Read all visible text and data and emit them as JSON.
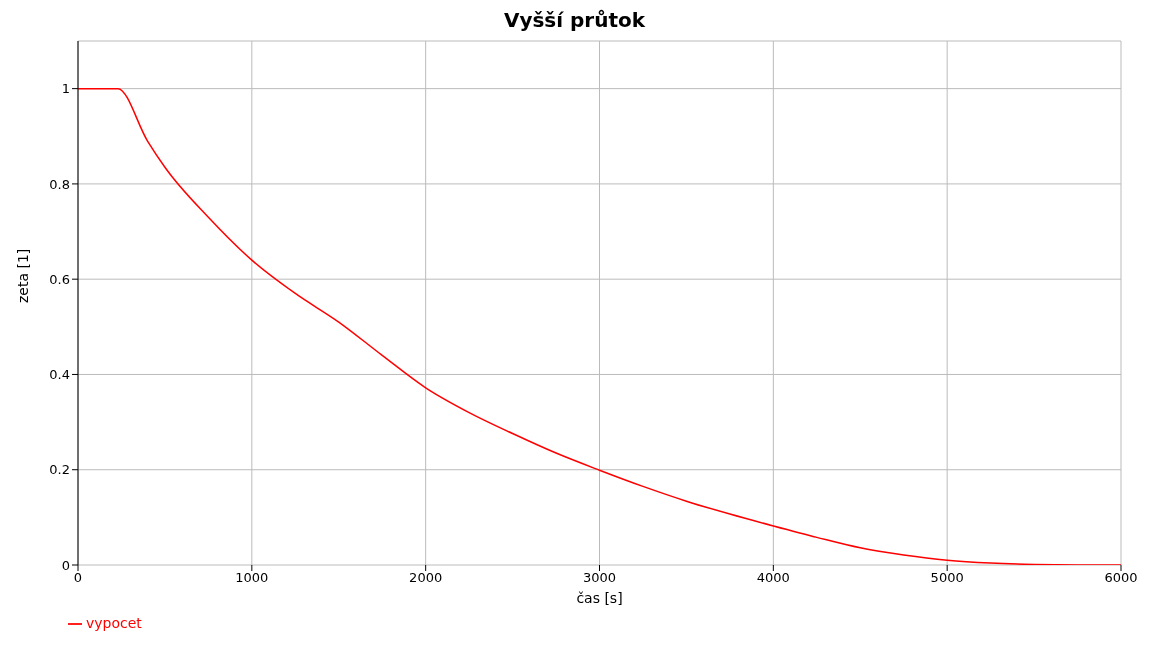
{
  "chart_data": {
    "type": "line",
    "title": "Vyšší průtok",
    "xlabel": "čas [s]",
    "ylabel": "zeta [1]",
    "series": [
      {
        "name": "vypocet",
        "color": "#ff0000",
        "x": [
          0,
          125,
          230,
          400,
          500,
          750,
          1000,
          1250,
          1500,
          1750,
          2000,
          2250,
          2500,
          2750,
          3000,
          3250,
          3500,
          3750,
          4000,
          4250,
          4500,
          4750,
          5000,
          5250,
          5500,
          5750,
          6000
        ],
        "values": [
          1,
          1,
          1,
          0.89,
          0.835,
          0.73,
          0.64,
          0.57,
          0.51,
          0.44,
          0.372,
          0.32,
          0.276,
          0.235,
          0.199,
          0.165,
          0.134,
          0.107,
          0.082,
          0.058,
          0.036,
          0.021,
          0.01,
          0.004,
          0.001,
          0,
          0
        ]
      }
    ],
    "xlim": [
      0,
      6000
    ],
    "xticks": [
      0,
      1000,
      2000,
      3000,
      4000,
      5000,
      6000
    ],
    "ylim": [
      0,
      1.1
    ],
    "yticks": [
      0,
      0.2,
      0.4,
      0.6,
      0.8,
      1
    ],
    "grid": true,
    "legend": "bottom left",
    "marker": "none",
    "line_style": "solid"
  }
}
